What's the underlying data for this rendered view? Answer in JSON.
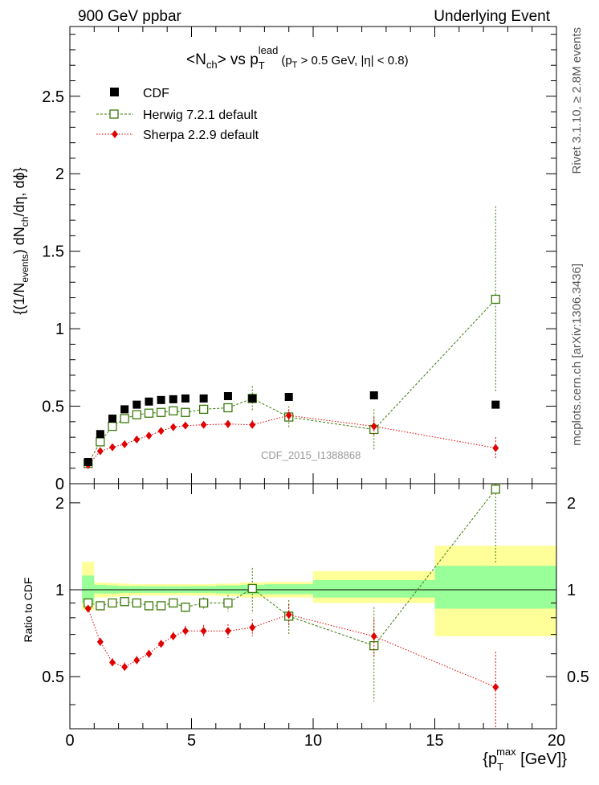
{
  "header": {
    "left": "900 GeV ppbar",
    "right": "Underlying Event"
  },
  "side_labels": {
    "rivet": "Rivet 3.1.10, ≥ 2.8M events",
    "mcplots": "mcplots.cern.ch [arXiv:1306.3436]"
  },
  "title": {
    "main": "<N",
    "main_sub": "ch",
    "vs": "> vs p",
    "vs_sup": "lead",
    "vs_sub": "T",
    "cut_pre": "(p",
    "cut_sub": "T",
    "cut_post": " > 0.5 GeV, |η| < 0.8)"
  },
  "watermark": "CDF_2015_I1388868",
  "ylabel_main": {
    "p1": "{(1/N",
    "s1": "events",
    "p2": ") dN",
    "s2": "ch",
    "p3": "/dη, dϕ}"
  },
  "ylabel_ratio": "Ratio to CDF",
  "xlabel": {
    "pre": "{p",
    "sup": "max",
    "sub": "T",
    "post": " [GeV]}"
  },
  "legend": [
    {
      "label": "CDF",
      "marker": "filled-square",
      "color": "#000000"
    },
    {
      "label": "Herwig 7.2.1 default",
      "marker": "open-square",
      "color": "#3c7a0a"
    },
    {
      "label": "Sherpa 2.2.9 default",
      "marker": "diamond",
      "color": "#e00000"
    }
  ],
  "colors": {
    "cdf": "#000000",
    "herwig": "#3c7a0a",
    "sherpa": "#e00000",
    "band_outer": "#ffff99",
    "band_inner": "#99ff99"
  },
  "chart_data": [
    {
      "type": "scatter",
      "panel": "main",
      "xlim": [
        0,
        20
      ],
      "ylim": [
        0,
        2.95
      ],
      "x_ticks": [
        0,
        5,
        10,
        15,
        20
      ],
      "y_ticks": [
        0,
        0.5,
        1,
        1.5,
        2,
        2.5
      ],
      "series": [
        {
          "name": "CDF",
          "x": [
            0.75,
            1.25,
            1.75,
            2.25,
            2.75,
            3.25,
            3.75,
            4.25,
            4.75,
            5.5,
            6.5,
            7.5,
            9.0,
            12.5,
            17.5
          ],
          "y": [
            0.14,
            0.32,
            0.42,
            0.48,
            0.51,
            0.53,
            0.54,
            0.545,
            0.55,
            0.55,
            0.565,
            0.55,
            0.56,
            0.57,
            0.51
          ],
          "yerr": [
            0.005,
            0.01,
            0.01,
            0.01,
            0.01,
            0.01,
            0.01,
            0.01,
            0.01,
            0.01,
            0.01,
            0.01,
            0.012,
            0.012,
            0.015
          ]
        },
        {
          "name": "Herwig 7.2.1 default",
          "x": [
            0.75,
            1.25,
            1.75,
            2.25,
            2.75,
            3.25,
            3.75,
            4.25,
            4.75,
            5.5,
            6.5,
            7.5,
            9.0,
            12.5,
            17.5
          ],
          "y": [
            0.13,
            0.27,
            0.37,
            0.42,
            0.445,
            0.455,
            0.46,
            0.47,
            0.46,
            0.48,
            0.49,
            0.55,
            0.43,
            0.35,
            1.19
          ],
          "yerr": [
            0.01,
            0.01,
            0.01,
            0.01,
            0.01,
            0.015,
            0.015,
            0.015,
            0.02,
            0.02,
            0.03,
            0.08,
            0.07,
            0.13,
            0.6
          ]
        },
        {
          "name": "Sherpa 2.2.9 default",
          "x": [
            0.75,
            1.25,
            1.75,
            2.25,
            2.75,
            3.25,
            3.75,
            4.25,
            4.75,
            5.5,
            6.5,
            7.5,
            9.0,
            12.5,
            17.5
          ],
          "y": [
            0.12,
            0.21,
            0.235,
            0.255,
            0.285,
            0.31,
            0.34,
            0.365,
            0.375,
            0.38,
            0.385,
            0.38,
            0.44,
            0.37,
            0.23
          ],
          "yerr": [
            0.005,
            0.01,
            0.01,
            0.01,
            0.01,
            0.012,
            0.015,
            0.015,
            0.018,
            0.02,
            0.025,
            0.03,
            0.04,
            0.06,
            0.07
          ]
        }
      ]
    },
    {
      "type": "scatter",
      "panel": "ratio",
      "ylabel": "Ratio to CDF",
      "xlim": [
        0,
        20
      ],
      "ylim": [
        0.33,
        2.33
      ],
      "x_ticks": [
        0,
        5,
        10,
        15,
        20
      ],
      "y_ticks": [
        0.5,
        1,
        2
      ],
      "reference_line": 1,
      "bands": [
        {
          "x0": 0.5,
          "x1": 1.0,
          "outer": [
            0.85,
            1.25
          ],
          "inner": [
            0.9,
            1.12
          ]
        },
        {
          "x0": 1.0,
          "x1": 1.5,
          "outer": [
            0.94,
            1.06
          ],
          "inner": [
            0.97,
            1.04
          ]
        },
        {
          "x0": 1.5,
          "x1": 2.0,
          "outer": [
            0.945,
            1.055
          ],
          "inner": [
            0.97,
            1.035
          ]
        },
        {
          "x0": 2.0,
          "x1": 2.5,
          "outer": [
            0.95,
            1.05
          ],
          "inner": [
            0.975,
            1.03
          ]
        },
        {
          "x0": 2.5,
          "x1": 3.0,
          "outer": [
            0.955,
            1.045
          ],
          "inner": [
            0.975,
            1.03
          ]
        },
        {
          "x0": 3.0,
          "x1": 3.5,
          "outer": [
            0.955,
            1.045
          ],
          "inner": [
            0.975,
            1.028
          ]
        },
        {
          "x0": 3.5,
          "x1": 4.0,
          "outer": [
            0.955,
            1.045
          ],
          "inner": [
            0.975,
            1.028
          ]
        },
        {
          "x0": 4.0,
          "x1": 4.5,
          "outer": [
            0.955,
            1.045
          ],
          "inner": [
            0.975,
            1.028
          ]
        },
        {
          "x0": 4.5,
          "x1": 5.0,
          "outer": [
            0.955,
            1.045
          ],
          "inner": [
            0.975,
            1.028
          ]
        },
        {
          "x0": 5.0,
          "x1": 6.0,
          "outer": [
            0.955,
            1.045
          ],
          "inner": [
            0.975,
            1.03
          ]
        },
        {
          "x0": 6.0,
          "x1": 7.0,
          "outer": [
            0.95,
            1.05
          ],
          "inner": [
            0.97,
            1.035
          ]
        },
        {
          "x0": 7.0,
          "x1": 8.0,
          "outer": [
            0.94,
            1.06
          ],
          "inner": [
            0.965,
            1.04
          ]
        },
        {
          "x0": 8.0,
          "x1": 10.0,
          "outer": [
            0.94,
            1.065
          ],
          "inner": [
            0.965,
            1.045
          ]
        },
        {
          "x0": 10.0,
          "x1": 15.0,
          "outer": [
            0.9,
            1.16
          ],
          "inner": [
            0.94,
            1.08
          ]
        },
        {
          "x0": 15.0,
          "x1": 20.0,
          "outer": [
            0.69,
            1.42
          ],
          "inner": [
            0.86,
            1.21
          ]
        }
      ],
      "series": [
        {
          "name": "Herwig 7.2.1 default",
          "x": [
            0.75,
            1.25,
            1.75,
            2.25,
            2.75,
            3.25,
            3.75,
            4.25,
            4.75,
            5.5,
            6.5,
            7.5,
            9.0,
            12.5,
            17.5
          ],
          "y": [
            0.9,
            0.88,
            0.9,
            0.91,
            0.9,
            0.88,
            0.88,
            0.9,
            0.87,
            0.9,
            0.9,
            1.01,
            0.81,
            0.64,
            2.23
          ],
          "yerr": [
            0.03,
            0.02,
            0.02,
            0.02,
            0.02,
            0.025,
            0.025,
            0.025,
            0.035,
            0.04,
            0.06,
            0.18,
            0.11,
            0.23,
            1.0
          ]
        },
        {
          "name": "Sherpa 2.2.9 default",
          "x": [
            0.75,
            1.25,
            1.75,
            2.25,
            2.75,
            3.25,
            3.75,
            4.25,
            4.75,
            5.5,
            6.5,
            7.5,
            9.0,
            12.5,
            17.5
          ],
          "y": [
            0.86,
            0.66,
            0.56,
            0.54,
            0.57,
            0.6,
            0.65,
            0.69,
            0.72,
            0.72,
            0.72,
            0.74,
            0.82,
            0.69,
            0.46
          ],
          "yerr": [
            0.02,
            0.02,
            0.02,
            0.02,
            0.02,
            0.02,
            0.02,
            0.025,
            0.03,
            0.035,
            0.04,
            0.05,
            0.07,
            0.1,
            0.15
          ]
        }
      ]
    }
  ]
}
